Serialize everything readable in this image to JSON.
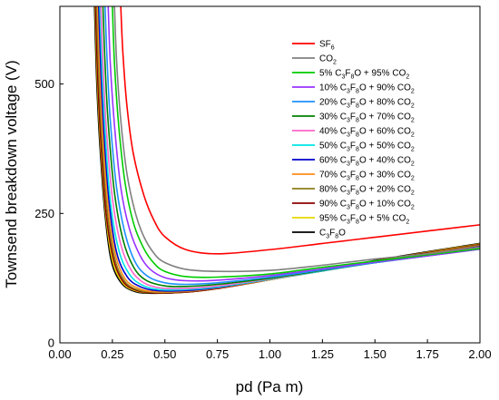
{
  "chart_data": {
    "type": "line",
    "xlabel": "pd (Pa m)",
    "ylabel": "Townsend breakdown voltage (V)",
    "xlim": [
      0,
      2.0
    ],
    "ylim": [
      0,
      650
    ],
    "xticks": [
      "0.00",
      "0.25",
      "0.50",
      "0.75",
      "1.00",
      "1.25",
      "1.50",
      "1.75",
      "2.00"
    ],
    "yticks": [
      "0",
      "250",
      "500"
    ],
    "grid": false,
    "legend_position": "top-right",
    "series": [
      {
        "name": "SF6",
        "legend": [
          [
            "SF",
            ""
          ],
          [
            "6",
            "sub"
          ]
        ],
        "color": "#ff0000",
        "x": [
          0.29,
          0.3,
          0.32,
          0.35,
          0.4,
          0.45,
          0.5,
          0.6,
          0.75,
          1.0,
          1.25,
          1.5,
          1.75,
          2.0
        ],
        "y": [
          650,
          560,
          455,
          365,
          285,
          235,
          205,
          180,
          172,
          180,
          192,
          204,
          216,
          228
        ]
      },
      {
        "name": "CO2",
        "legend": [
          [
            "CO",
            ""
          ],
          [
            "2",
            "sub"
          ]
        ],
        "color": "#808080",
        "x": [
          0.26,
          0.27,
          0.29,
          0.32,
          0.36,
          0.4,
          0.45,
          0.5,
          0.6,
          0.75,
          1.0,
          1.25,
          1.5,
          1.75,
          2.0
        ],
        "y": [
          650,
          545,
          430,
          325,
          250,
          205,
          172,
          155,
          142,
          138,
          140,
          150,
          162,
          172,
          185
        ]
      },
      {
        "name": "5% C3F8O + 95% CO2",
        "legend": [
          [
            "5% C",
            ""
          ],
          [
            "3",
            "sub"
          ],
          [
            "F",
            ""
          ],
          [
            "8",
            "sub"
          ],
          [
            "O + 95% CO",
            ""
          ],
          [
            "2",
            "sub"
          ]
        ],
        "color": "#00cc00",
        "x": [
          0.25,
          0.26,
          0.28,
          0.31,
          0.35,
          0.4,
          0.45,
          0.5,
          0.6,
          0.75,
          1.0,
          1.25,
          1.5,
          1.75,
          2.0
        ],
        "y": [
          650,
          540,
          420,
          310,
          232,
          182,
          153,
          138,
          128,
          127,
          133,
          146,
          158,
          170,
          182
        ]
      },
      {
        "name": "10% C3F8O + 90% CO2",
        "legend": [
          [
            "10% C",
            ""
          ],
          [
            "3",
            "sub"
          ],
          [
            "F",
            ""
          ],
          [
            "8",
            "sub"
          ],
          [
            "O + 90% CO",
            ""
          ],
          [
            "2",
            "sub"
          ]
        ],
        "color": "#9933ff",
        "x": [
          0.23,
          0.24,
          0.26,
          0.29,
          0.33,
          0.38,
          0.43,
          0.5,
          0.6,
          0.75,
          1.0,
          1.25,
          1.5,
          1.75,
          2.0
        ],
        "y": [
          650,
          540,
          420,
          300,
          222,
          170,
          142,
          126,
          120,
          121,
          130,
          143,
          156,
          168,
          181
        ]
      },
      {
        "name": "20% C3F8O + 80% CO2",
        "legend": [
          [
            "20% C",
            ""
          ],
          [
            "3",
            "sub"
          ],
          [
            "F",
            ""
          ],
          [
            "8",
            "sub"
          ],
          [
            "O + 80% CO",
            ""
          ],
          [
            "2",
            "sub"
          ]
        ],
        "color": "#1e90ff",
        "x": [
          0.215,
          0.225,
          0.24,
          0.27,
          0.31,
          0.36,
          0.42,
          0.5,
          0.6,
          0.75,
          1.0,
          1.25,
          1.5,
          1.75,
          2.0
        ],
        "y": [
          650,
          545,
          430,
          300,
          212,
          155,
          128,
          116,
          113,
          116,
          127,
          141,
          155,
          168,
          181
        ]
      },
      {
        "name": "30% C3F8O + 70% CO2",
        "legend": [
          [
            "30% C",
            ""
          ],
          [
            "3",
            "sub"
          ],
          [
            "F",
            ""
          ],
          [
            "8",
            "sub"
          ],
          [
            "O + 70% CO",
            ""
          ],
          [
            "2",
            "sub"
          ]
        ],
        "color": "#008000",
        "x": [
          0.205,
          0.215,
          0.23,
          0.26,
          0.3,
          0.35,
          0.41,
          0.5,
          0.6,
          0.75,
          1.0,
          1.25,
          1.5,
          1.75,
          2.0
        ],
        "y": [
          650,
          540,
          425,
          290,
          200,
          147,
          121,
          110,
          109,
          113,
          125,
          140,
          155,
          168,
          182
        ]
      },
      {
        "name": "40% C3F8O + 60% CO2",
        "legend": [
          [
            "40% C",
            ""
          ],
          [
            "3",
            "sub"
          ],
          [
            "F",
            ""
          ],
          [
            "8",
            "sub"
          ],
          [
            "O + 60% CO",
            ""
          ],
          [
            "2",
            "sub"
          ]
        ],
        "color": "#ff66cc",
        "x": [
          0.195,
          0.205,
          0.22,
          0.25,
          0.29,
          0.34,
          0.4,
          0.48,
          0.6,
          0.75,
          1.0,
          1.25,
          1.5,
          1.75,
          2.0
        ],
        "y": [
          650,
          540,
          420,
          280,
          190,
          140,
          116,
          106,
          105,
          110,
          124,
          140,
          155,
          169,
          183
        ]
      },
      {
        "name": "50% C3F8O + 50% CO2",
        "legend": [
          [
            "50% C",
            ""
          ],
          [
            "3",
            "sub"
          ],
          [
            "F",
            ""
          ],
          [
            "8",
            "sub"
          ],
          [
            "O + 50% CO",
            ""
          ],
          [
            "2",
            "sub"
          ]
        ],
        "color": "#00e5e5",
        "x": [
          0.19,
          0.2,
          0.215,
          0.24,
          0.28,
          0.33,
          0.39,
          0.47,
          0.6,
          0.75,
          1.0,
          1.25,
          1.5,
          1.75,
          2.0
        ],
        "y": [
          650,
          535,
          410,
          275,
          180,
          133,
          112,
          103,
          103,
          108,
          123,
          139,
          155,
          170,
          184
        ]
      },
      {
        "name": "60% C3F8O + 40% CO2",
        "legend": [
          [
            "60% C",
            ""
          ],
          [
            "3",
            "sub"
          ],
          [
            "F",
            ""
          ],
          [
            "8",
            "sub"
          ],
          [
            "O + 40% CO",
            ""
          ],
          [
            "2",
            "sub"
          ]
        ],
        "color": "#0000cc",
        "x": [
          0.185,
          0.195,
          0.21,
          0.235,
          0.27,
          0.32,
          0.38,
          0.46,
          0.6,
          0.75,
          1.0,
          1.25,
          1.5,
          1.75,
          2.0
        ],
        "y": [
          650,
          530,
          405,
          270,
          175,
          128,
          109,
          101,
          101,
          107,
          123,
          139,
          156,
          171,
          186
        ]
      },
      {
        "name": "70% C3F8O + 30% CO2",
        "legend": [
          [
            "70% C",
            ""
          ],
          [
            "3",
            "sub"
          ],
          [
            "F",
            ""
          ],
          [
            "8",
            "sub"
          ],
          [
            "O + 30% CO",
            ""
          ],
          [
            "2",
            "sub"
          ]
        ],
        "color": "#ff8c1a",
        "x": [
          0.18,
          0.19,
          0.205,
          0.23,
          0.265,
          0.31,
          0.37,
          0.45,
          0.6,
          0.75,
          1.0,
          1.25,
          1.5,
          1.75,
          2.0
        ],
        "y": [
          650,
          525,
          400,
          262,
          170,
          124,
          106,
          99,
          100,
          106,
          122,
          139,
          156,
          172,
          187
        ]
      },
      {
        "name": "80% C3F8O + 20% CO2",
        "legend": [
          [
            "80% C",
            ""
          ],
          [
            "3",
            "sub"
          ],
          [
            "F",
            ""
          ],
          [
            "8",
            "sub"
          ],
          [
            "O + 20% CO",
            ""
          ],
          [
            "2",
            "sub"
          ]
        ],
        "color": "#8b7d1a",
        "x": [
          0.175,
          0.185,
          0.2,
          0.225,
          0.26,
          0.305,
          0.36,
          0.44,
          0.6,
          0.75,
          1.0,
          1.25,
          1.5,
          1.75,
          2.0
        ],
        "y": [
          650,
          520,
          395,
          258,
          165,
          121,
          104,
          98,
          99,
          106,
          122,
          139,
          157,
          173,
          189
        ]
      },
      {
        "name": "90% C3F8O + 10% CO2",
        "legend": [
          [
            "90% C",
            ""
          ],
          [
            "3",
            "sub"
          ],
          [
            "F",
            ""
          ],
          [
            "8",
            "sub"
          ],
          [
            "O + 10% CO",
            ""
          ],
          [
            "2",
            "sub"
          ]
        ],
        "color": "#8b0000",
        "x": [
          0.17,
          0.18,
          0.195,
          0.22,
          0.255,
          0.3,
          0.355,
          0.43,
          0.6,
          0.75,
          1.0,
          1.25,
          1.5,
          1.75,
          2.0
        ],
        "y": [
          650,
          515,
          390,
          252,
          162,
          119,
          103,
          97,
          98,
          105,
          122,
          140,
          158,
          174,
          190
        ]
      },
      {
        "name": "95% C3F8O + 5% CO2",
        "legend": [
          [
            "95% C",
            ""
          ],
          [
            "3",
            "sub"
          ],
          [
            "F",
            ""
          ],
          [
            "8",
            "sub"
          ],
          [
            "O + 5% CO",
            ""
          ],
          [
            "2",
            "sub"
          ]
        ],
        "color": "#e6d800",
        "x": [
          0.168,
          0.178,
          0.193,
          0.218,
          0.25,
          0.295,
          0.35,
          0.43,
          0.6,
          0.75,
          1.0,
          1.25,
          1.5,
          1.75,
          2.0
        ],
        "y": [
          650,
          512,
          388,
          250,
          160,
          118,
          102,
          97,
          98,
          105,
          122,
          140,
          158,
          175,
          191
        ]
      },
      {
        "name": "C3F8O",
        "legend": [
          [
            "C",
            ""
          ],
          [
            "3",
            "sub"
          ],
          [
            "F",
            ""
          ],
          [
            "8",
            "sub"
          ],
          [
            "O",
            ""
          ]
        ],
        "color": "#000000",
        "x": [
          0.165,
          0.175,
          0.19,
          0.215,
          0.245,
          0.29,
          0.345,
          0.42,
          0.6,
          0.75,
          1.0,
          1.25,
          1.5,
          1.75,
          2.0
        ],
        "y": [
          650,
          510,
          385,
          248,
          158,
          117,
          101,
          96,
          98,
          105,
          122,
          140,
          159,
          176,
          192
        ]
      }
    ]
  }
}
